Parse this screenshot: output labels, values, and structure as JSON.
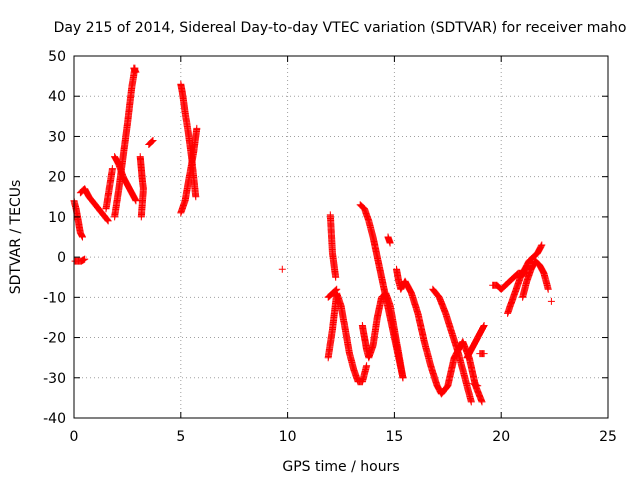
{
  "chart_data": {
    "type": "scatter",
    "title": "Day 215 of 2014, Sidereal Day-to-day VTEC variation (SDTVAR) for receiver maho",
    "xlabel": "GPS time / hours",
    "ylabel": "SDTVAR / TECUs",
    "xlim": [
      0,
      25
    ],
    "ylim": [
      -40,
      50
    ],
    "x_ticks": [
      0,
      5,
      10,
      15,
      20,
      25
    ],
    "y_ticks": [
      -40,
      -30,
      -20,
      -10,
      0,
      10,
      20,
      30,
      40,
      50
    ],
    "grid": true,
    "legend": "none",
    "marker": "plus",
    "color": "#ff0000",
    "tracks": [
      {
        "x": [
          0.0,
          0.1,
          0.2,
          0.3,
          0.4
        ],
        "y": [
          14,
          12,
          9,
          6,
          5
        ]
      },
      {
        "x": [
          0.05,
          0.2,
          0.35,
          0.5
        ],
        "y": [
          -1,
          -1,
          -1,
          -0.5
        ]
      },
      {
        "x": [
          0.3,
          0.5,
          0.7,
          1.0,
          1.3,
          1.6
        ],
        "y": [
          16,
          17,
          15,
          13,
          11,
          9
        ]
      },
      {
        "x": [
          1.5,
          1.8
        ],
        "y": [
          12,
          22
        ]
      },
      {
        "x": [
          1.9,
          2.1,
          2.3,
          2.5,
          2.7,
          2.9
        ],
        "y": [
          25,
          23,
          20,
          18,
          16,
          14
        ]
      },
      {
        "x": [
          1.9,
          2.1,
          2.3,
          2.5,
          2.7,
          2.85
        ],
        "y": [
          10,
          17,
          25,
          33,
          42,
          47
        ]
      },
      {
        "x": [
          2.8,
          2.9
        ],
        "y": [
          47,
          46
        ]
      },
      {
        "x": [
          3.1,
          3.15,
          3.2,
          3.25,
          3.15
        ],
        "y": [
          25,
          22,
          19,
          17,
          10
        ]
      },
      {
        "x": [
          3.5,
          3.7
        ],
        "y": [
          28,
          29
        ]
      },
      {
        "x": [
          5.0,
          5.1,
          5.2,
          5.35,
          5.5,
          5.6,
          5.7
        ],
        "y": [
          43,
          40,
          36,
          31,
          25,
          20,
          15
        ]
      },
      {
        "x": [
          5.0,
          5.2,
          5.4,
          5.6,
          5.75
        ],
        "y": [
          11,
          14,
          20,
          26,
          32
        ]
      },
      {
        "x": [
          9.75
        ],
        "y": [
          -3
        ]
      },
      {
        "x": [
          11.9,
          12.1,
          12.3,
          12.5,
          12.7,
          12.9,
          13.1,
          13.3,
          13.5,
          13.7
        ],
        "y": [
          -25,
          -18,
          -9,
          -12,
          -18,
          -24,
          -28,
          -31,
          -31,
          -27
        ]
      },
      {
        "x": [
          11.9,
          12.1,
          12.3
        ],
        "y": [
          -10,
          -9,
          -8
        ]
      },
      {
        "x": [
          12.0,
          12.1,
          12.2,
          12.25
        ],
        "y": [
          10.5,
          1,
          -3,
          -5
        ]
      },
      {
        "x": [
          13.5,
          13.6,
          13.7,
          13.8,
          14.0,
          14.2,
          14.4,
          14.6,
          14.8,
          15.0,
          15.2,
          15.4
        ],
        "y": [
          -17,
          -20,
          -23,
          -25,
          -22,
          -15,
          -10,
          -9,
          -12,
          -18,
          -24,
          -30
        ]
      },
      {
        "x": [
          13.4,
          13.6,
          13.8,
          14.0,
          14.2,
          14.4,
          14.6,
          14.8,
          15.0,
          15.2,
          15.4
        ],
        "y": [
          13,
          12,
          9,
          5,
          0,
          -5,
          -10,
          -15,
          -20,
          -25,
          -30
        ]
      },
      {
        "x": [
          14.7,
          14.8
        ],
        "y": [
          5,
          3.5
        ]
      },
      {
        "x": [
          15.1,
          15.2,
          15.3,
          15.5,
          15.8,
          16.1,
          16.4,
          16.7,
          17.0,
          17.2,
          17.5,
          17.8,
          18.2,
          18.5,
          18.8,
          19.1
        ],
        "y": [
          -3,
          -6,
          -8,
          -6,
          -9,
          -14,
          -21,
          -27,
          -32,
          -34,
          -32,
          -25,
          -21,
          -25,
          -32,
          -36
        ]
      },
      {
        "x": [
          16.8,
          17.1,
          17.4,
          17.7,
          18.0,
          18.3,
          18.6
        ],
        "y": [
          -8,
          -10,
          -14,
          -19,
          -24,
          -30,
          -36
        ]
      },
      {
        "x": [
          18.4,
          18.6,
          18.8,
          19.0,
          19.2
        ],
        "y": [
          -25,
          -23,
          -21,
          -19,
          -17
        ]
      },
      {
        "x": [
          18.7,
          18.9
        ],
        "y": [
          -31.5,
          -32
        ]
      },
      {
        "x": [
          19.0,
          19.2
        ],
        "y": [
          -24,
          -24
        ]
      },
      {
        "x": [
          19.6,
          19.8,
          20.0,
          20.2,
          20.4,
          20.6,
          20.8,
          21.0,
          21.2
        ],
        "y": [
          -7,
          -7,
          -8,
          -7,
          -6,
          -5,
          -4,
          -4,
          -4
        ]
      },
      {
        "x": [
          20.3,
          20.5,
          20.7,
          20.9,
          21.1,
          21.3,
          21.5,
          21.7,
          21.9
        ],
        "y": [
          -14,
          -11,
          -8,
          -5,
          -3,
          -1,
          0,
          1,
          3
        ]
      },
      {
        "x": [
          21.0,
          21.2,
          21.4,
          21.6,
          21.8,
          22.0,
          22.2
        ],
        "y": [
          -10,
          -6,
          -3,
          -1,
          -2,
          -4,
          -8
        ]
      },
      {
        "x": [
          22.35
        ],
        "y": [
          -11
        ]
      }
    ]
  }
}
